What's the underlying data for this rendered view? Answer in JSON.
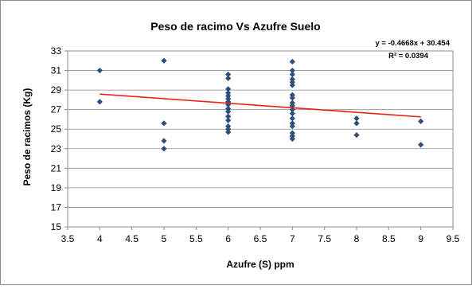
{
  "chart_data": {
    "type": "scatter",
    "title": "Peso de  racimo Vs Azufre Suelo",
    "xlabel": "Azufre (S) ppm",
    "ylabel": "Peso de racimos (Kg)",
    "xlim": [
      3.5,
      9.5
    ],
    "ylim": [
      15,
      33
    ],
    "x_ticks": [
      "3.5",
      "4",
      "4.5",
      "5",
      "5.5",
      "6",
      "6.5",
      "7",
      "7.5",
      "8",
      "8.5",
      "9",
      "9.5"
    ],
    "y_ticks": [
      "15",
      "17",
      "19",
      "21",
      "23",
      "25",
      "27",
      "29",
      "31",
      "33"
    ],
    "grid": "horizontal",
    "points": [
      {
        "x": 4,
        "y": 31.0
      },
      {
        "x": 4,
        "y": 27.8
      },
      {
        "x": 5,
        "y": 32.0
      },
      {
        "x": 5,
        "y": 25.6
      },
      {
        "x": 5,
        "y": 23.8
      },
      {
        "x": 5,
        "y": 23.0
      },
      {
        "x": 6,
        "y": 30.6
      },
      {
        "x": 6,
        "y": 30.2
      },
      {
        "x": 6,
        "y": 29.1
      },
      {
        "x": 6,
        "y": 28.7
      },
      {
        "x": 6,
        "y": 28.4
      },
      {
        "x": 6,
        "y": 28.1
      },
      {
        "x": 6,
        "y": 27.8
      },
      {
        "x": 6,
        "y": 27.5
      },
      {
        "x": 6,
        "y": 27.1
      },
      {
        "x": 6,
        "y": 26.8
      },
      {
        "x": 6,
        "y": 26.3
      },
      {
        "x": 6,
        "y": 25.9
      },
      {
        "x": 6,
        "y": 25.3
      },
      {
        "x": 6,
        "y": 25.0
      },
      {
        "x": 6,
        "y": 24.7
      },
      {
        "x": 7,
        "y": 31.9
      },
      {
        "x": 7,
        "y": 31.0
      },
      {
        "x": 7,
        "y": 30.6
      },
      {
        "x": 7,
        "y": 30.1
      },
      {
        "x": 7,
        "y": 29.8
      },
      {
        "x": 7,
        "y": 29.5
      },
      {
        "x": 7,
        "y": 28.5
      },
      {
        "x": 7,
        "y": 28.2
      },
      {
        "x": 7,
        "y": 27.7
      },
      {
        "x": 7,
        "y": 27.4
      },
      {
        "x": 7,
        "y": 27.0
      },
      {
        "x": 7,
        "y": 26.6
      },
      {
        "x": 7,
        "y": 26.1
      },
      {
        "x": 7,
        "y": 25.6
      },
      {
        "x": 7,
        "y": 25.3
      },
      {
        "x": 7,
        "y": 24.6
      },
      {
        "x": 7,
        "y": 24.3
      },
      {
        "x": 7,
        "y": 24.0
      },
      {
        "x": 8,
        "y": 26.1
      },
      {
        "x": 8,
        "y": 25.6
      },
      {
        "x": 8,
        "y": 24.4
      },
      {
        "x": 9,
        "y": 25.8
      },
      {
        "x": 9,
        "y": 23.4
      }
    ],
    "trendline": {
      "equation": "y = -0.4668x + 30.454",
      "r2": "R² = 0.0394",
      "slope": -0.4668,
      "intercept": 30.454,
      "x_range": [
        4,
        9
      ]
    },
    "colors": {
      "marker": "#2F4D7A",
      "trendline": "#E8231A",
      "grid": "#8C8C8C",
      "frame": "#8C8C8C"
    }
  }
}
